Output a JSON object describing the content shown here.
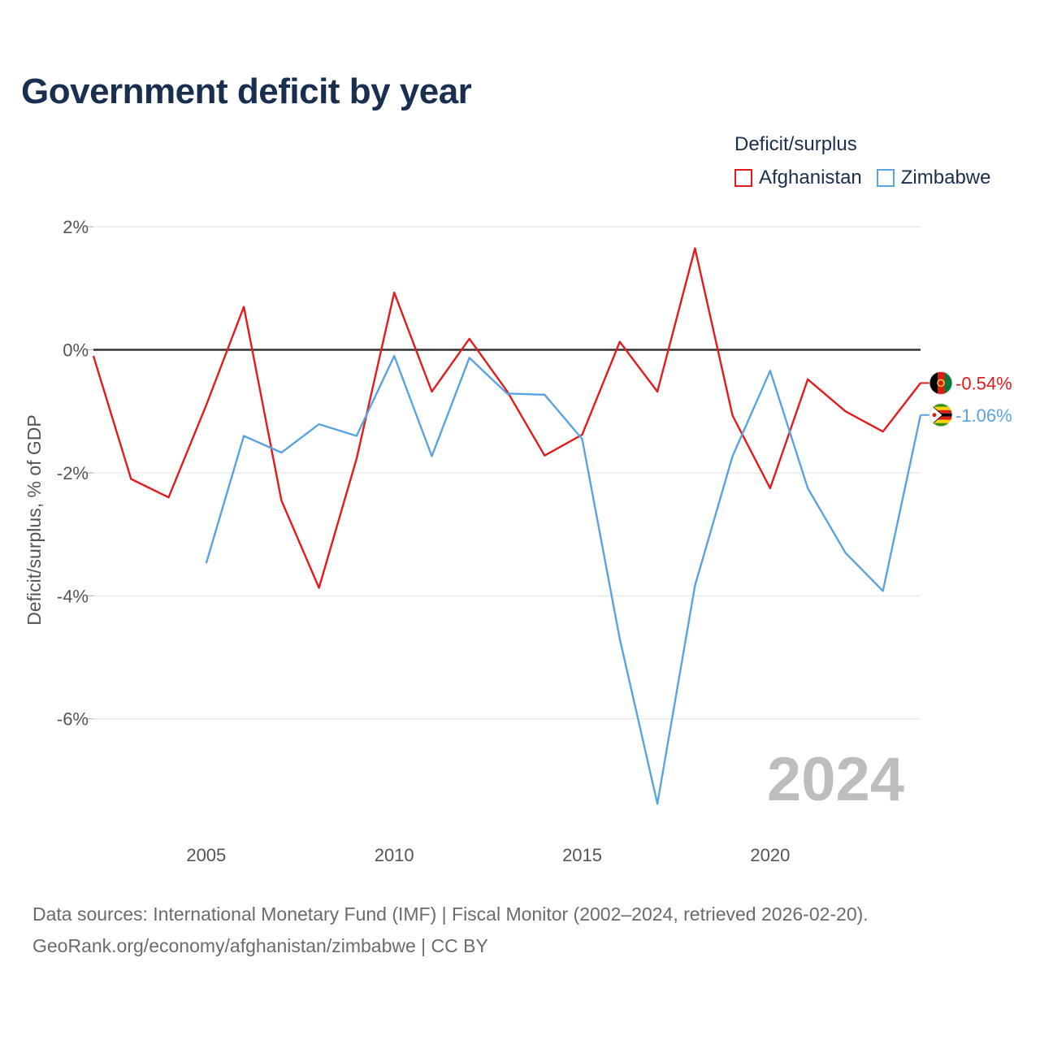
{
  "header": {
    "title": "Government deficit by year"
  },
  "legend": {
    "title": "Deficit/surplus",
    "items": [
      {
        "label": "Afghanistan",
        "color": "#e41a1c"
      },
      {
        "label": "Zimbabwe",
        "color": "#5ba3e0"
      }
    ]
  },
  "chart_data": {
    "type": "line",
    "title": "Government deficit by year",
    "xlabel": "",
    "ylabel": "Deficit/surplus, % of GDP",
    "x": [
      2002,
      2003,
      2004,
      2005,
      2006,
      2007,
      2008,
      2009,
      2010,
      2011,
      2012,
      2013,
      2014,
      2015,
      2016,
      2017,
      2018,
      2019,
      2020,
      2021,
      2022,
      2023,
      2024
    ],
    "xlim": [
      2002,
      2024
    ],
    "ylim": [
      -7.8,
      2.2
    ],
    "xticks": [
      2005,
      2010,
      2015,
      2020
    ],
    "xtick_labels": [
      "2005",
      "2010",
      "2015",
      "2020"
    ],
    "yticks": [
      2,
      0,
      -2,
      -4,
      -6
    ],
    "ytick_labels": [
      "2%",
      "0%",
      "-2%",
      "-4%",
      "-6%"
    ],
    "grid": true,
    "year_watermark": "2024",
    "series": [
      {
        "name": "Afghanistan",
        "color": "#e41a1c",
        "end_label": "-0.54%",
        "flag_icon": "afghanistan-flag-icon",
        "values": [
          -0.1,
          -2.1,
          -2.4,
          -0.9,
          0.7,
          -2.45,
          -3.87,
          -1.77,
          0.93,
          -0.68,
          0.18,
          -0.67,
          -1.72,
          -1.38,
          0.13,
          -0.68,
          1.65,
          -1.07,
          -2.25,
          -0.48,
          -1.0,
          -1.33,
          -0.54
        ]
      },
      {
        "name": "Zimbabwe",
        "color": "#5ba3e0",
        "end_label": "-1.06%",
        "flag_icon": "zimbabwe-flag-icon",
        "values": [
          null,
          null,
          null,
          -3.47,
          -1.4,
          -1.67,
          -1.21,
          -1.4,
          -0.1,
          -1.73,
          -0.13,
          -0.71,
          -0.73,
          -1.45,
          -4.7,
          -7.38,
          -3.83,
          -1.73,
          -0.34,
          -2.25,
          -3.3,
          -3.92,
          -1.06
        ]
      }
    ]
  },
  "footer": {
    "line1": "Data sources: International Monetary Fund (IMF) | Fiscal Monitor (2002–2024, retrieved 2026-02-20).",
    "line2": "GeoRank.org/economy/afghanistan/zimbabwe | CC BY"
  }
}
